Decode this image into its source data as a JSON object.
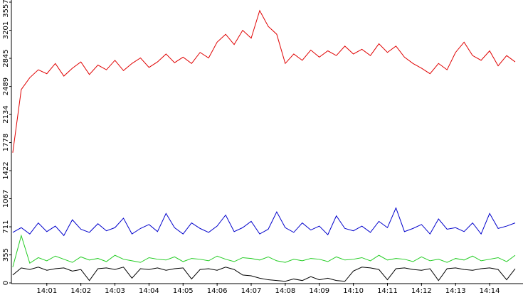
{
  "chart_data": {
    "type": "line",
    "x": [
      0,
      0.25,
      0.5,
      0.75,
      1,
      1.25,
      1.5,
      1.75,
      2,
      2.25,
      2.5,
      2.75,
      3,
      3.25,
      3.5,
      3.75,
      4,
      4.25,
      4.5,
      4.75,
      5,
      5.25,
      5.5,
      5.75,
      6,
      6.25,
      6.5,
      6.75,
      7,
      7.25,
      7.5,
      7.75,
      8,
      8.25,
      8.5,
      8.75,
      9,
      9.25,
      9.5,
      9.75,
      10,
      10.25,
      10.5,
      10.75,
      11,
      11.25,
      11.5,
      11.75,
      12,
      12.25,
      12.5,
      12.75,
      13,
      13.25,
      13.5,
      13.75,
      14,
      14.25,
      14.5,
      14.75
    ],
    "series": [
      {
        "color": "#e00000",
        "values": [
          1650,
          2450,
          2600,
          2700,
          2650,
          2780,
          2620,
          2720,
          2800,
          2640,
          2760,
          2700,
          2820,
          2690,
          2780,
          2850,
          2730,
          2800,
          2900,
          2790,
          2860,
          2780,
          2920,
          2850,
          3050,
          3150,
          3020,
          3200,
          3100,
          3450,
          3250,
          3150,
          2780,
          2900,
          2820,
          2950,
          2860,
          2940,
          2880,
          3000,
          2900,
          2960,
          2880,
          3030,
          2920,
          3000,
          2860,
          2780,
          2720,
          2650,
          2780,
          2700,
          2920,
          3050,
          2880,
          2820,
          2940,
          2750,
          2880,
          2800
        ]
      },
      {
        "color": "#0000cc",
        "values": [
          640,
          700,
          620,
          760,
          650,
          720,
          600,
          800,
          680,
          640,
          750,
          660,
          700,
          820,
          620,
          690,
          740,
          650,
          880,
          700,
          620,
          760,
          690,
          640,
          720,
          860,
          650,
          700,
          780,
          620,
          680,
          900,
          700,
          640,
          760,
          670,
          720,
          610,
          850,
          690,
          660,
          720,
          640,
          780,
          700,
          950,
          650,
          690,
          740,
          620,
          810,
          680,
          700,
          650,
          760,
          620,
          880,
          690,
          720,
          760
        ]
      },
      {
        "color": "#22cc22",
        "values": [
          200,
          600,
          250,
          320,
          280,
          340,
          300,
          260,
          330,
          290,
          310,
          270,
          350,
          300,
          280,
          260,
          320,
          300,
          290,
          330,
          270,
          310,
          300,
          280,
          340,
          300,
          270,
          320,
          310,
          290,
          330,
          280,
          260,
          300,
          280,
          310,
          300,
          270,
          330,
          290,
          300,
          320,
          280,
          350,
          290,
          310,
          300,
          270,
          330,
          280,
          300,
          260,
          310,
          290,
          340,
          280,
          300,
          320,
          270,
          350
        ]
      },
      {
        "color": "#000000",
        "values": [
          100,
          190,
          170,
          200,
          160,
          180,
          190,
          150,
          170,
          30,
          180,
          190,
          170,
          200,
          60,
          180,
          170,
          190,
          160,
          180,
          190,
          50,
          170,
          180,
          160,
          200,
          170,
          100,
          90,
          60,
          40,
          30,
          20,
          50,
          30,
          80,
          40,
          60,
          30,
          20,
          150,
          200,
          190,
          170,
          40,
          180,
          190,
          170,
          160,
          180,
          30,
          180,
          190,
          170,
          160,
          180,
          190,
          170,
          40,
          180
        ]
      }
    ],
    "xlim": [
      -0.04,
      14.98
    ],
    "xticks": [
      {
        "value": 1,
        "label": "14:01"
      },
      {
        "value": 2,
        "label": "14:02"
      },
      {
        "value": 3,
        "label": "14:03"
      },
      {
        "value": 4,
        "label": "14:04"
      },
      {
        "value": 5,
        "label": "14:05"
      },
      {
        "value": 6,
        "label": "14:06"
      },
      {
        "value": 7,
        "label": "14:07"
      },
      {
        "value": 8,
        "label": "14:08"
      },
      {
        "value": 9,
        "label": "14:09"
      },
      {
        "value": 10,
        "label": "14:10"
      },
      {
        "value": 11,
        "label": "14:11"
      },
      {
        "value": 12,
        "label": "14:12"
      },
      {
        "value": 13,
        "label": "14:13"
      },
      {
        "value": 14,
        "label": "14:14"
      }
    ],
    "ylim": [
      0,
      3557
    ],
    "yticks": [
      0,
      355,
      711,
      1067,
      1422,
      1778,
      2134,
      2489,
      2845,
      3201,
      3557
    ]
  }
}
